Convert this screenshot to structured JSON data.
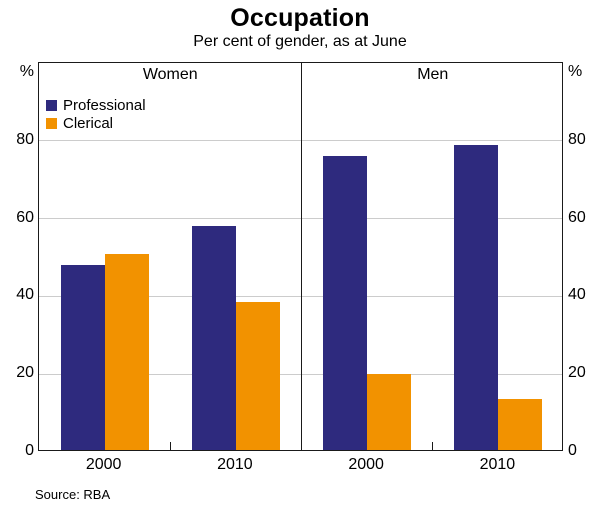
{
  "chart_data": {
    "type": "bar",
    "title": "Occupation",
    "subtitle": "Per cent of gender, as at June",
    "source": "Source: RBA",
    "unit_label": "%",
    "ylim": [
      0,
      100
    ],
    "yticks": [
      0,
      20,
      40,
      60,
      80
    ],
    "grid": true,
    "legend_position": "top-left-inside",
    "categories": [
      "2000",
      "2010"
    ],
    "series_names": [
      "Professional",
      "Clerical"
    ],
    "colors": {
      "professional": "#2e2a7e",
      "clerical": "#f29200",
      "grid": "#cccccc",
      "frame": "#1a1a1a"
    },
    "panels": [
      {
        "label": "Women",
        "series": [
          {
            "name": "Professional",
            "values": [
              47.5,
              57.5
            ]
          },
          {
            "name": "Clerical",
            "values": [
              50.5,
              38
            ]
          }
        ]
      },
      {
        "label": "Men",
        "series": [
          {
            "name": "Professional",
            "values": [
              75.5,
              78.5
            ]
          },
          {
            "name": "Clerical",
            "values": [
              19.5,
              13
            ]
          }
        ]
      }
    ]
  }
}
